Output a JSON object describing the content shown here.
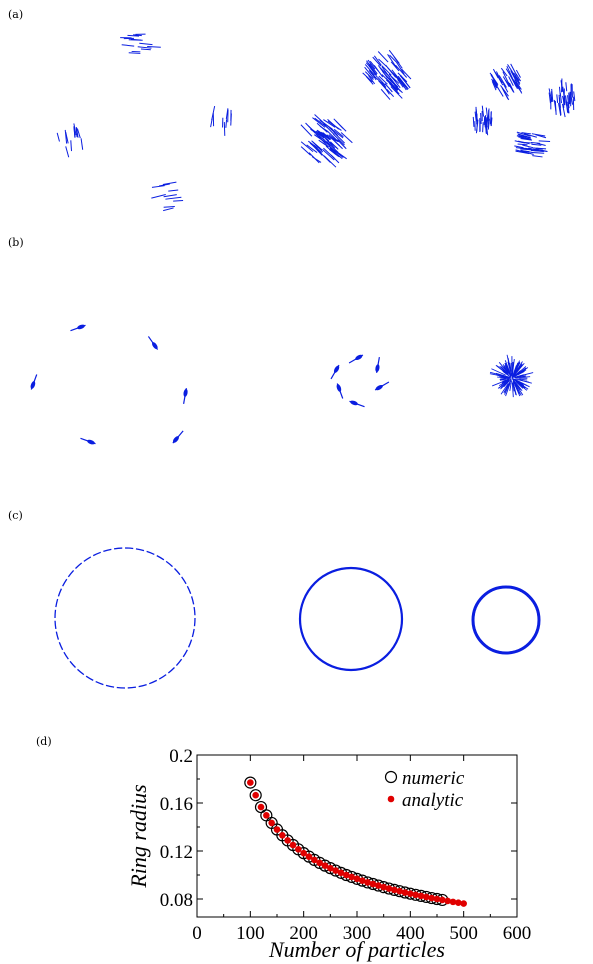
{
  "panels": {
    "a": "(a)",
    "b": "(b)",
    "c": "(c)",
    "d": "(d)"
  },
  "colors": {
    "particles": "#0a1ee0",
    "numeric_edge": "#000000",
    "analytic": "#e00000"
  },
  "chart_data": {
    "type": "scatter",
    "title": "",
    "xlabel": "Number of particles",
    "ylabel": "Ring radius",
    "xlim": [
      0,
      600
    ],
    "ylim": [
      0.065,
      0.2
    ],
    "xticks": [
      "0",
      "100",
      "200",
      "300",
      "400",
      "500",
      "600"
    ],
    "yticks": [
      "0.08",
      "0.12",
      "0.16",
      "0.2"
    ],
    "ytick_values": [
      0.08,
      0.12,
      0.16,
      0.2
    ],
    "legend_position": "top-right",
    "series": [
      {
        "name": "numeric",
        "marker": "open-circle",
        "x": [
          100,
          110,
          120,
          130,
          140,
          150,
          160,
          170,
          180,
          190,
          200,
          210,
          220,
          230,
          240,
          250,
          260,
          270,
          280,
          290,
          300,
          310,
          320,
          330,
          340,
          350,
          360,
          370,
          380,
          390,
          400,
          410,
          420,
          430,
          440,
          450,
          460
        ],
        "y": [
          0.177,
          0.1665,
          0.1566,
          0.1497,
          0.1434,
          0.1379,
          0.1331,
          0.1288,
          0.125,
          0.1214,
          0.1182,
          0.1153,
          0.1126,
          0.1101,
          0.1078,
          0.1057,
          0.1037,
          0.1018,
          0.1,
          0.0984,
          0.0968,
          0.0953,
          0.0938,
          0.0925,
          0.0912,
          0.0899,
          0.0887,
          0.0876,
          0.0865,
          0.0854,
          0.0844,
          0.0835,
          0.0826,
          0.0817,
          0.0808,
          0.08,
          0.0792
        ]
      },
      {
        "name": "analytic",
        "marker": "filled-dot",
        "x": [
          100,
          110,
          120,
          130,
          140,
          150,
          160,
          170,
          180,
          190,
          200,
          210,
          220,
          230,
          240,
          250,
          260,
          270,
          280,
          290,
          300,
          310,
          320,
          330,
          340,
          350,
          360,
          370,
          380,
          390,
          400,
          410,
          420,
          430,
          440,
          450,
          460,
          470,
          480,
          490,
          500
        ],
        "y": [
          0.177,
          0.1665,
          0.1566,
          0.1497,
          0.1434,
          0.1379,
          0.1331,
          0.1288,
          0.125,
          0.1214,
          0.1182,
          0.1153,
          0.1126,
          0.1101,
          0.1078,
          0.1057,
          0.1037,
          0.1018,
          0.1,
          0.0984,
          0.0968,
          0.0953,
          0.0938,
          0.0925,
          0.0912,
          0.0899,
          0.0887,
          0.0876,
          0.0865,
          0.0854,
          0.0844,
          0.0835,
          0.0826,
          0.0817,
          0.0808,
          0.08,
          0.0792,
          0.0784,
          0.0776,
          0.0769,
          0.0762
        ]
      }
    ]
  }
}
